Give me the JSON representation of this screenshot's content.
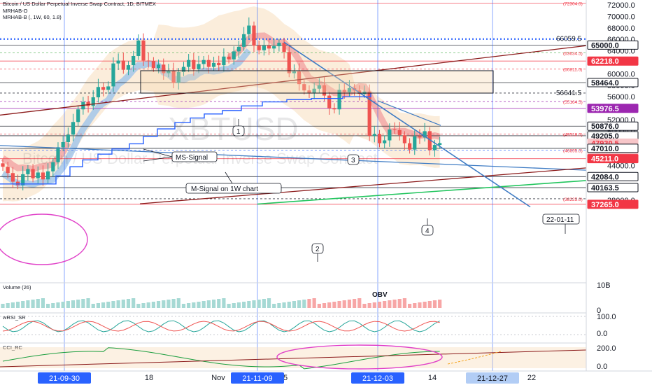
{
  "header": {
    "title": "Bitcoin / US Dollar Perpetual Inverse Swap Contract, 1D, BITMEX",
    "indicators": [
      "MRHAB-O",
      "MRHAB-B (, 1W, 60, 1.8)"
    ]
  },
  "watermark": {
    "symbol": "XBTUSD",
    "description": "Bitcoin / US Dollar Perpetual Inverse Swap Contract"
  },
  "price_axis": {
    "ticks": [
      "72000.0",
      "70000.0",
      "68000.0",
      "66000.0",
      "64000.0",
      "62000.0",
      "60000.0",
      "58000.0",
      "56000.0",
      "54000.0",
      "52000.0",
      "50000.0",
      "48000.0",
      "46000.0",
      "44000.0",
      "42000.0",
      "40000.0",
      "38000.0"
    ],
    "badges": [
      {
        "value": "65000.0",
        "bg": "#ffffff",
        "fg": "#131722",
        "border": "#131722"
      },
      {
        "value": "62218.0",
        "bg": "#f23645",
        "fg": "#ffffff",
        "border": "#f23645"
      },
      {
        "value": "58464.0",
        "bg": "#ffffff",
        "fg": "#131722",
        "border": "#131722"
      },
      {
        "value": "53976.5",
        "bg": "#9c27b0",
        "fg": "#ffffff",
        "border": "#9c27b0"
      },
      {
        "value": "50876.0",
        "bg": "#ffffff",
        "fg": "#131722",
        "border": "#131722"
      },
      {
        "value": "49205.0",
        "bg": "#ffffff",
        "fg": "#131722",
        "border": "#131722"
      },
      {
        "value": "47930.5",
        "bg": "#f7c6c9",
        "fg": "#f23645",
        "border": "#f7c6c9",
        "sub": "01:15:51"
      },
      {
        "value": "47010.0",
        "bg": "#ffffff",
        "fg": "#131722",
        "border": "#131722"
      },
      {
        "value": "45211.0",
        "bg": "#f23645",
        "fg": "#ffffff",
        "border": "#f23645"
      },
      {
        "value": "42084.0",
        "bg": "#ffffff",
        "fg": "#131722",
        "border": "#131722"
      },
      {
        "value": "40163.5",
        "bg": "#ffffff",
        "fg": "#131722",
        "border": "#131722"
      },
      {
        "value": "37265.0",
        "bg": "#f23645",
        "fg": "#ffffff",
        "border": "#f23645"
      }
    ],
    "small_labels": [
      "(72304.0)",
      "(63634.5)",
      "(60811.0)",
      "(55164.5)",
      "(49518.0)",
      "(46695.0)",
      "(38225.0)"
    ],
    "level_labels": [
      "66059.5",
      "56641.5"
    ]
  },
  "annotations": {
    "ms_signal": "MS-Signal",
    "m_signal": "M-Signal on 1W chart",
    "wave_1": "1",
    "wave_2": "2",
    "wave_3": "3",
    "wave_4": "4",
    "date_note": "22-01-11"
  },
  "panes": {
    "volume": {
      "label": "Volume (26)",
      "obv": "OBV",
      "ticks": [
        "10B",
        "0"
      ]
    },
    "wrsi": {
      "label": "wRSI_SR",
      "ticks": [
        "100.0",
        "0.0"
      ]
    },
    "cci": {
      "label": "CCI_RC",
      "ticks": [
        "200.0",
        "0.0"
      ]
    }
  },
  "time_axis": {
    "labels": [
      "18",
      "Nov",
      "5",
      "14",
      "22"
    ],
    "highlighted": [
      "21-09-30",
      "21-11-09",
      "21-12-03",
      "21-12-27"
    ]
  },
  "colors": {
    "up": "#26a69a",
    "down": "#ef5350",
    "accent_blue": "#2962ff",
    "trend_blue": "#3f7cc4",
    "trend_red": "#8b1a1a",
    "trend_green": "#22c55e",
    "magenta": "#e040c8",
    "band": "#f6d7b0"
  },
  "chart_data": {
    "type": "candlestick",
    "title": "Bitcoin / US Dollar Perpetual Inverse Swap Contract, 1D, BITMEX",
    "symbol": "XBTUSD",
    "timeframe": "1D",
    "ylim": [
      37000,
      72600
    ],
    "close_series": [
      43800,
      42700,
      41200,
      40600,
      42500,
      43400,
      41800,
      42800,
      41600,
      43000,
      44600,
      47200,
      48100,
      49400,
      51600,
      53800,
      55100,
      54400,
      55900,
      57700,
      57200,
      57800,
      61800,
      62300,
      60700,
      61500,
      63100,
      65800,
      62300,
      62200,
      61000,
      61600,
      60100,
      60500,
      58400,
      60300,
      61200,
      62400,
      60800,
      61700,
      62400,
      61200,
      61900,
      61500,
      63000,
      62500,
      63900,
      64700,
      66900,
      68400,
      64900,
      64100,
      64900,
      64400,
      64800,
      65400,
      63800,
      60100,
      60400,
      58200,
      57100,
      56700,
      57400,
      58000,
      56200,
      54000,
      53800,
      57200,
      56800,
      57500,
      57100,
      56500,
      56900,
      49200,
      49500,
      47900,
      48400,
      50300,
      50200,
      49300,
      47900,
      46800,
      49100,
      48900,
      50000,
      46700,
      47600,
      47930
    ],
    "key_dates": [
      "21-09-30",
      "21-11-09",
      "21-12-03",
      "21-12-27",
      "22-01-11"
    ],
    "horizontal_levels": [
      72304.0,
      66059.5,
      65000.0,
      63634.5,
      62218.0,
      60811.0,
      58464.0,
      56641.5,
      55164.5,
      53976.5,
      50876.0,
      49518.0,
      49205.0,
      47010.0,
      46695.0,
      45211.0,
      42084.0,
      40163.5,
      38225.0,
      37265.0
    ],
    "last_price": 47930.5,
    "countdown": "01:15:51"
  }
}
